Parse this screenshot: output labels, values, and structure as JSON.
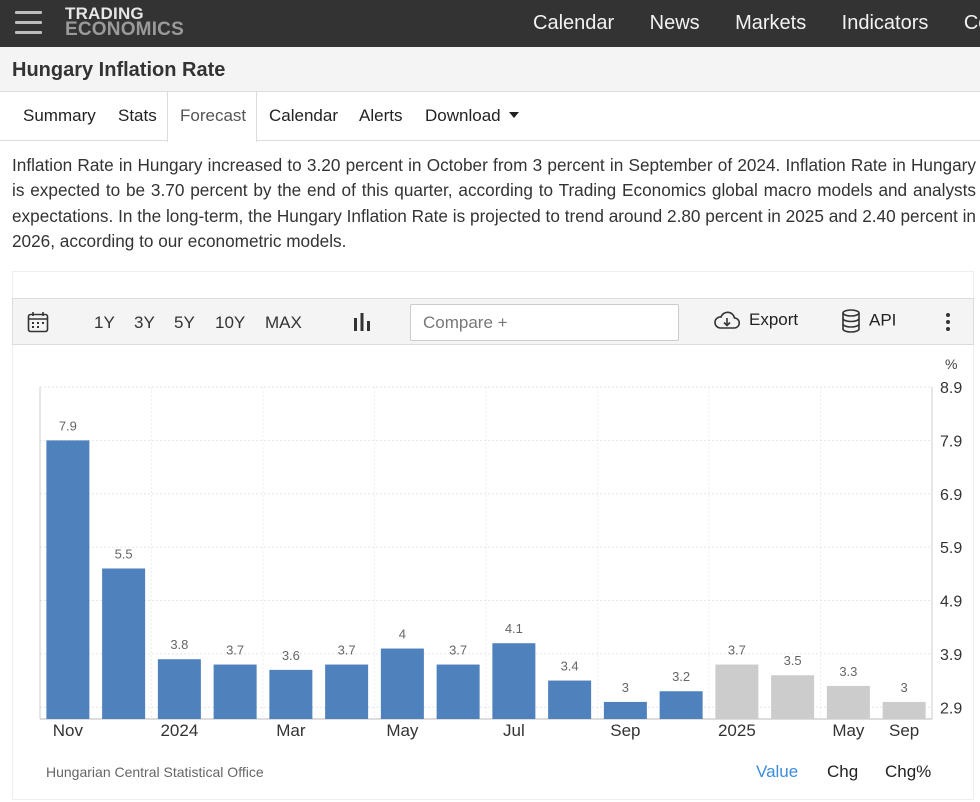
{
  "header": {
    "logo_line1": "TRADING",
    "logo_line2": "ECONOMICS",
    "nav": [
      "Calendar",
      "News",
      "Markets",
      "Indicators",
      "Commodities"
    ]
  },
  "page_title": "Hungary Inflation Rate",
  "tabs": [
    {
      "label": "Summary",
      "active": false
    },
    {
      "label": "Stats",
      "active": false
    },
    {
      "label": "Forecast",
      "active": true
    },
    {
      "label": "Calendar",
      "active": false
    },
    {
      "label": "Alerts",
      "active": false
    },
    {
      "label": "Download",
      "active": false
    }
  ],
  "description": "Inflation Rate in Hungary increased to 3.20 percent in October from 3 percent in September of 2024. Inflation Rate in Hungary is expected to be 3.70 percent by the end of this quarter, according to Trading Economics global macro models and analysts expectations. In the long-term, the Hungary Inflation Rate is projected to trend around 2.80 percent in 2025 and 2.40 percent in 2026, according to our econometric models.",
  "toolbar": {
    "ranges": [
      "1Y",
      "3Y",
      "5Y",
      "10Y",
      "MAX"
    ],
    "compare_placeholder": "Compare +",
    "export_label": "Export",
    "api_label": "API"
  },
  "chart_data": {
    "type": "bar",
    "unit": "%",
    "series": [
      {
        "values": [
          7.9,
          5.5,
          3.8,
          3.7,
          3.6,
          3.7,
          4,
          3.7,
          4.1,
          3.4,
          3,
          3.2,
          3.7,
          3.5,
          3.3,
          3
        ],
        "value_labels": [
          "7.9",
          "5.5",
          "3.8",
          "3.7",
          "3.6",
          "3.7",
          "4",
          "3.7",
          "4.1",
          "3.4",
          "3",
          "3.2",
          "3.7",
          "3.5",
          "3.3",
          "3"
        ],
        "kind": [
          "actual",
          "actual",
          "actual",
          "actual",
          "actual",
          "actual",
          "actual",
          "actual",
          "actual",
          "actual",
          "actual",
          "actual",
          "forecast",
          "forecast",
          "forecast",
          "forecast"
        ]
      }
    ],
    "x_tick_labels": [
      {
        "index": 0,
        "label": "Nov"
      },
      {
        "index": 2,
        "label": "2024"
      },
      {
        "index": 4,
        "label": "Mar"
      },
      {
        "index": 6,
        "label": "May"
      },
      {
        "index": 8,
        "label": "Jul"
      },
      {
        "index": 10,
        "label": "Sep"
      },
      {
        "index": 12,
        "label": "2025"
      },
      {
        "index": 14,
        "label": "May"
      },
      {
        "index": 15,
        "label": "Sep"
      }
    ],
    "y_ticks": [
      2.9,
      3.9,
      4.9,
      5.9,
      6.9,
      7.9,
      8.9
    ],
    "ylim": [
      2.68,
      8.9
    ],
    "grid": true,
    "colors": {
      "actual": "#4f81bd",
      "forecast": "#cccccc"
    }
  },
  "footer": {
    "source": "Hungarian Central Statistical Office",
    "buttons": [
      "Value",
      "Chg",
      "Chg%"
    ],
    "selected": "Value"
  }
}
